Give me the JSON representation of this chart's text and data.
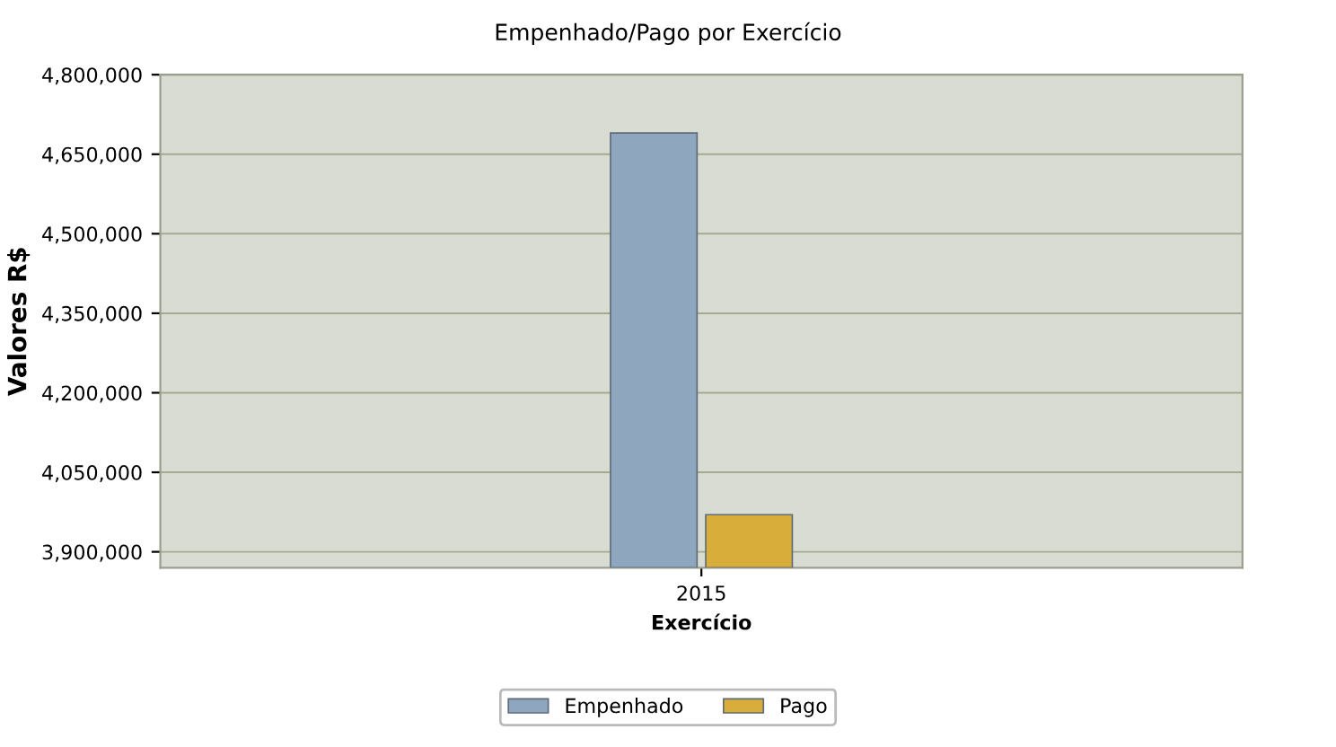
{
  "chart_data": {
    "type": "bar",
    "title": "Empenhado/Pago por Exercício",
    "xlabel": "Exercício",
    "ylabel": "Valores R$",
    "categories": [
      "2015"
    ],
    "series": [
      {
        "name": "Empenhado",
        "color": "#8fa6bf",
        "values": [
          4690000
        ]
      },
      {
        "name": "Pago",
        "color": "#d9ad3a",
        "values": [
          3970000
        ]
      }
    ],
    "ylim": [
      3870000,
      4800000
    ],
    "yticks": [
      {
        "value": 3900000,
        "label": "3,900,000"
      },
      {
        "value": 4050000,
        "label": "4,050,000"
      },
      {
        "value": 4200000,
        "label": "4,200,000"
      },
      {
        "value": 4350000,
        "label": "4,350,000"
      },
      {
        "value": 4500000,
        "label": "4,500,000"
      },
      {
        "value": 4650000,
        "label": "4,650,000"
      },
      {
        "value": 4800000,
        "label": "4,800,000"
      }
    ],
    "grid": "y",
    "legend": "bottom"
  }
}
